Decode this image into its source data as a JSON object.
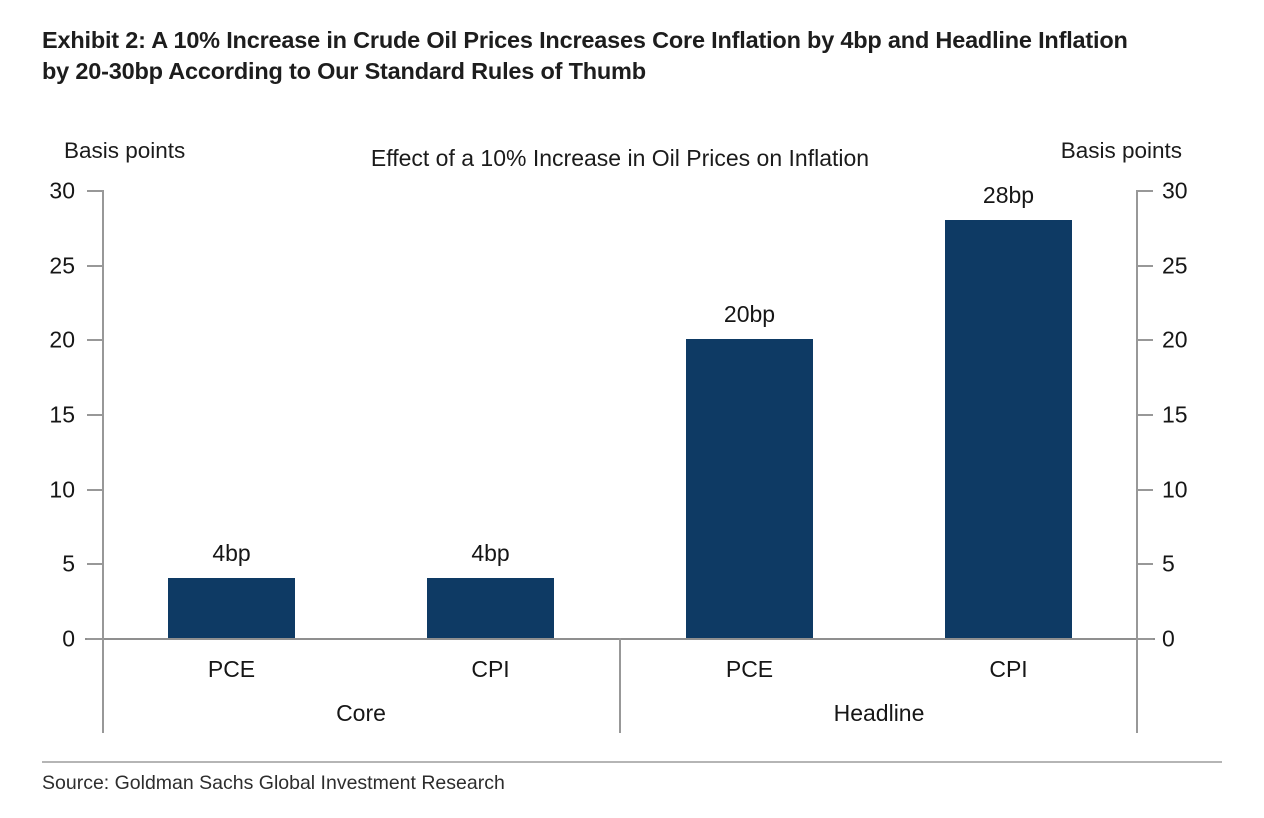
{
  "header": {
    "title": "Exhibit 2: A 10% Increase in Crude Oil Prices Increases Core Inflation by 4bp and Headline Inflation by 20-30bp According to Our Standard Rules of Thumb"
  },
  "chart_data": {
    "type": "bar",
    "title": "Effect of a 10% Increase in Oil Prices on Inflation",
    "left_axis_label": "Basis points",
    "right_axis_label": "Basis points",
    "ylim": [
      0,
      30
    ],
    "yticks": [
      0,
      5,
      10,
      15,
      20,
      25,
      30
    ],
    "grid": false,
    "legend": "none",
    "bar_color": "#0e3a64",
    "axis_color": "#989898",
    "groups": [
      {
        "label": "Core",
        "bars": [
          {
            "category": "PCE",
            "value": 4,
            "value_label": "4bp"
          },
          {
            "category": "CPI",
            "value": 4,
            "value_label": "4bp"
          }
        ]
      },
      {
        "label": "Headline",
        "bars": [
          {
            "category": "PCE",
            "value": 20,
            "value_label": "20bp"
          },
          {
            "category": "CPI",
            "value": 28,
            "value_label": "28bp"
          }
        ]
      }
    ]
  },
  "source": {
    "text": "Source: Goldman Sachs Global Investment Research"
  }
}
